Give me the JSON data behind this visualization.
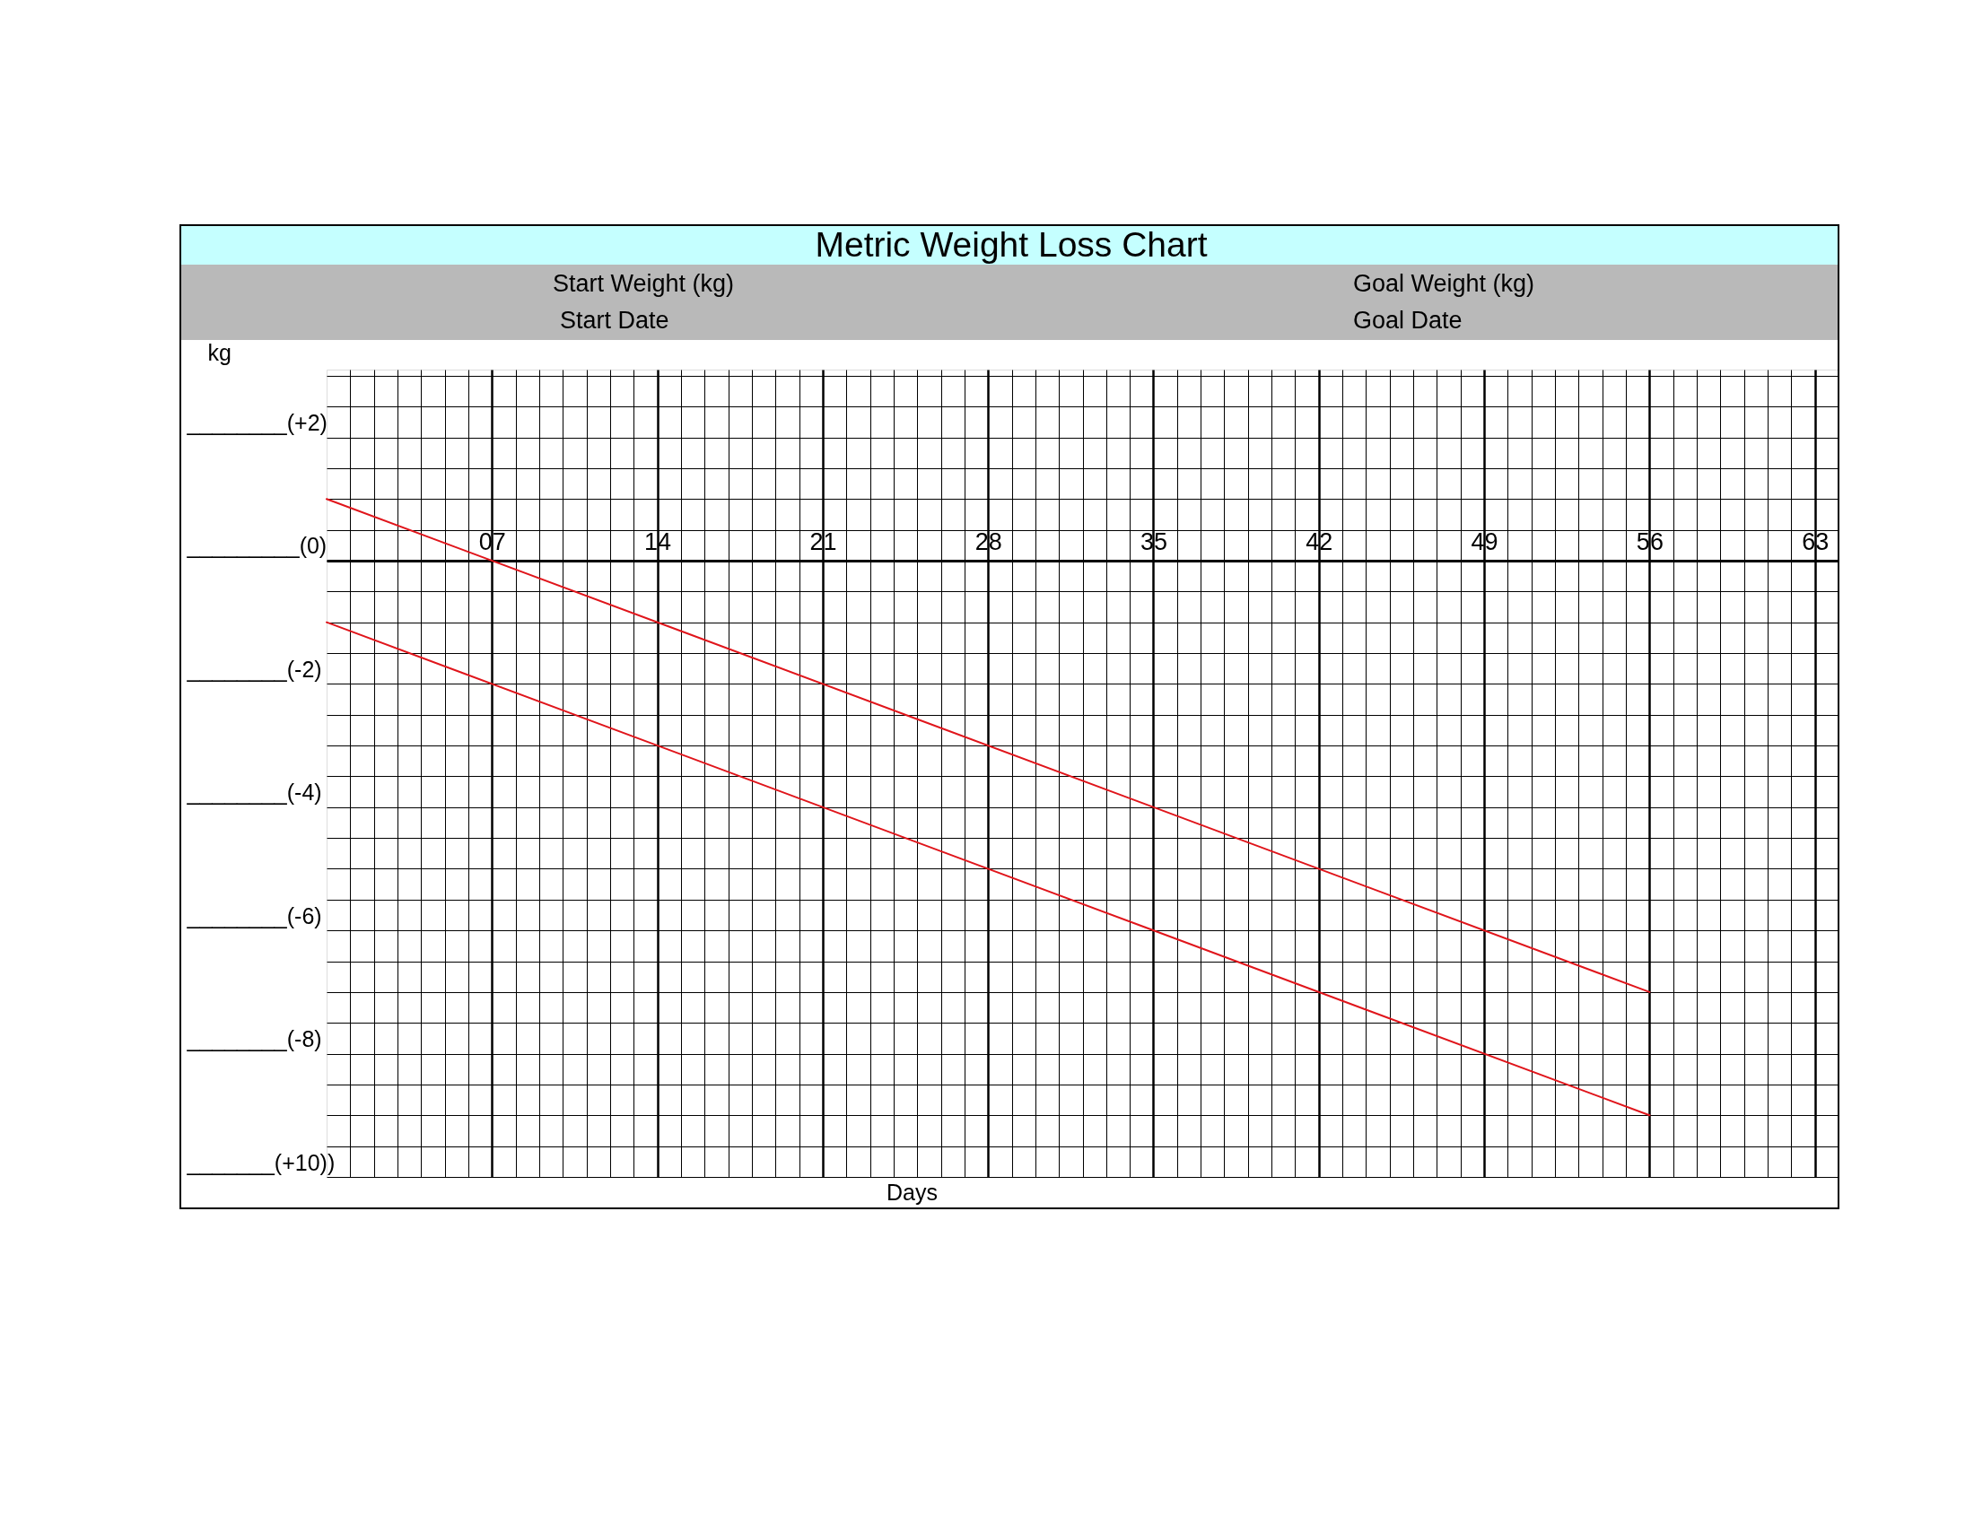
{
  "chart_data": {
    "type": "line",
    "title": "Metric Weight Loss Chart",
    "xlabel": "Days",
    "ylabel": "kg",
    "annotations": [
      "Start Weight (kg)",
      "Start Date",
      "Goal Weight (kg)",
      "Goal Date"
    ],
    "xlim": [
      0,
      64
    ],
    "ylim": [
      -10,
      3.1
    ],
    "xticks": [
      {
        "value": 1,
        "label": null
      },
      {
        "value": 2,
        "label": null
      },
      {
        "value": 3,
        "label": null
      },
      {
        "value": 4,
        "label": null
      },
      {
        "value": 5,
        "label": null
      },
      {
        "value": 6,
        "label": null
      },
      {
        "value": 7,
        "label": "07"
      },
      {
        "value": 8,
        "label": null
      },
      {
        "value": 9,
        "label": null
      },
      {
        "value": 10,
        "label": null
      },
      {
        "value": 11,
        "label": null
      },
      {
        "value": 12,
        "label": null
      },
      {
        "value": 13,
        "label": null
      },
      14,
      {
        "value": 15,
        "label": null
      },
      {
        "value": 16,
        "label": null
      },
      {
        "value": 17,
        "label": null
      },
      {
        "value": 18,
        "label": null
      },
      {
        "value": 19,
        "label": null
      },
      {
        "value": 20,
        "label": null
      },
      21,
      {
        "value": 22,
        "label": null
      },
      {
        "value": 23,
        "label": null
      },
      {
        "value": 24,
        "label": null
      },
      {
        "value": 25,
        "label": null
      },
      {
        "value": 26,
        "label": null
      },
      {
        "value": 27,
        "label": null
      },
      28,
      {
        "value": 29,
        "label": null
      },
      {
        "value": 30,
        "label": null
      },
      {
        "value": 31,
        "label": null
      },
      {
        "value": 32,
        "label": null
      },
      {
        "value": 33,
        "label": null
      },
      {
        "value": 34,
        "label": null
      },
      35,
      {
        "value": 36,
        "label": null
      },
      {
        "value": 37,
        "label": null
      },
      {
        "value": 38,
        "label": null
      },
      {
        "value": 39,
        "label": null
      },
      {
        "value": 40,
        "label": null
      },
      {
        "value": 41,
        "label": null
      },
      42,
      {
        "value": 43,
        "label": null
      },
      {
        "value": 44,
        "label": null
      },
      {
        "value": 45,
        "label": null
      },
      {
        "value": 46,
        "label": null
      },
      {
        "value": 47,
        "label": null
      },
      {
        "value": 48,
        "label": null
      },
      49,
      {
        "value": 50,
        "label": null
      },
      {
        "value": 51,
        "label": null
      },
      {
        "value": 52,
        "label": null
      },
      {
        "value": 53,
        "label": null
      },
      {
        "value": 54,
        "label": null
      },
      {
        "value": 55,
        "label": null
      },
      56,
      {
        "value": 57,
        "label": null
      },
      {
        "value": 58,
        "label": null
      },
      {
        "value": 59,
        "label": null
      },
      {
        "value": 60,
        "label": null
      },
      {
        "value": 61,
        "label": null
      },
      {
        "value": 62,
        "label": null
      },
      63
    ],
    "yticks": [
      {
        "value": -10,
        "label": "_______(+10))"
      },
      {
        "value": -9.5,
        "label": null
      },
      {
        "value": -9,
        "label": null
      },
      {
        "value": -8.5,
        "label": null
      },
      {
        "value": -8,
        "label": "________(-8)"
      },
      {
        "value": -7.5,
        "label": null
      },
      {
        "value": -7,
        "label": null
      },
      {
        "value": -6.5,
        "label": null
      },
      {
        "value": -6,
        "label": "________(-6)"
      },
      {
        "value": -5.5,
        "label": null
      },
      {
        "value": -5,
        "label": null
      },
      {
        "value": -4.5,
        "label": null
      },
      {
        "value": -4,
        "label": "________(-4)"
      },
      {
        "value": -3.5,
        "label": null
      },
      {
        "value": -3,
        "label": null
      },
      {
        "value": -2.5,
        "label": null
      },
      {
        "value": -2,
        "label": "________(-2)"
      },
      {
        "value": -1.5,
        "label": null
      },
      {
        "value": -1,
        "label": null
      },
      {
        "value": -0.5,
        "label": null
      },
      {
        "value": 0,
        "label": "_________(0)"
      },
      {
        "value": 0.5,
        "label": null
      },
      {
        "value": 1,
        "label": null
      },
      {
        "value": 1.5,
        "label": null
      },
      {
        "value": 2,
        "label": "________(+2)"
      },
      {
        "value": 2.5,
        "label": null
      },
      {
        "value": 3,
        "label": null
      }
    ],
    "x": [
      0,
      56
    ],
    "series": [
      {
        "color": "#e0151b",
        "values": [
          1,
          -7
        ]
      },
      {
        "color": "#e0151b",
        "values": [
          -1,
          -9
        ]
      }
    ],
    "grid": true,
    "line_style": "solid"
  }
}
